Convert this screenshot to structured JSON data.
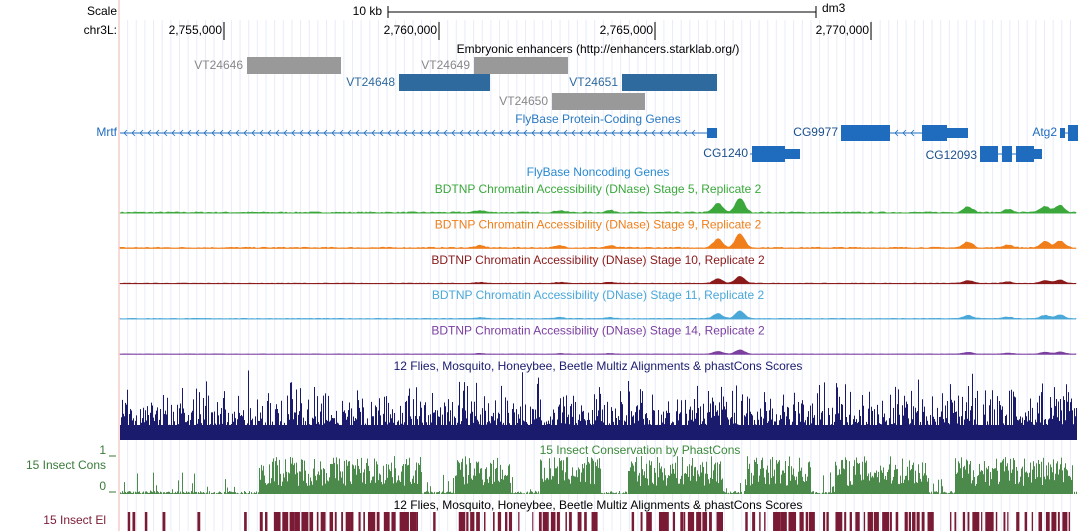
{
  "header": {
    "scale_label": "Scale",
    "scale_bar": "10 kb",
    "assembly": "dm3",
    "chrom": "chr3L:",
    "positions": [
      "2,755,000",
      "2,760,000",
      "2,765,000",
      "2,770,000"
    ]
  },
  "enhancers": {
    "title": "Embryonic enhancers (http://enhancers.starklab.org/)",
    "items": [
      "VT24646",
      "VT24649",
      "VT24648",
      "VT24651",
      "VT24650"
    ]
  },
  "protein_coding_genes": {
    "title": "FlyBase Protein-Coding Genes",
    "genes": [
      "Mrtf",
      "CG1240",
      "CG9977",
      "CG12093",
      "Atg2"
    ]
  },
  "noncoding_genes": {
    "title": "FlyBase Noncoding Genes"
  },
  "dnase_tracks": [
    "BDTNP Chromatin Accessibility (DNase) Stage 5, Replicate 2",
    "BDTNP Chromatin Accessibility (DNase) Stage 9, Replicate 2",
    "BDTNP Chromatin Accessibility (DNase) Stage 10, Replicate 2",
    "BDTNP Chromatin Accessibility (DNase) Stage 11, Replicate 2",
    "BDTNP Chromatin Accessibility (DNase) Stage 14, Replicate 2"
  ],
  "multiz": {
    "title": "12 Flies, Mosquito, Honeybee, Beetle Multiz Alignments & phastCons Scores"
  },
  "insect_cons": {
    "title": "15 Insect Conservation by PhastCons",
    "label": "15 Insect Cons",
    "max": 1,
    "min": 0
  },
  "insect_elements": {
    "title": "12 Flies, Mosquito, Honeybee, Beetle Multiz Alignments & phastCons Scores",
    "label": "15 Insect El"
  }
}
